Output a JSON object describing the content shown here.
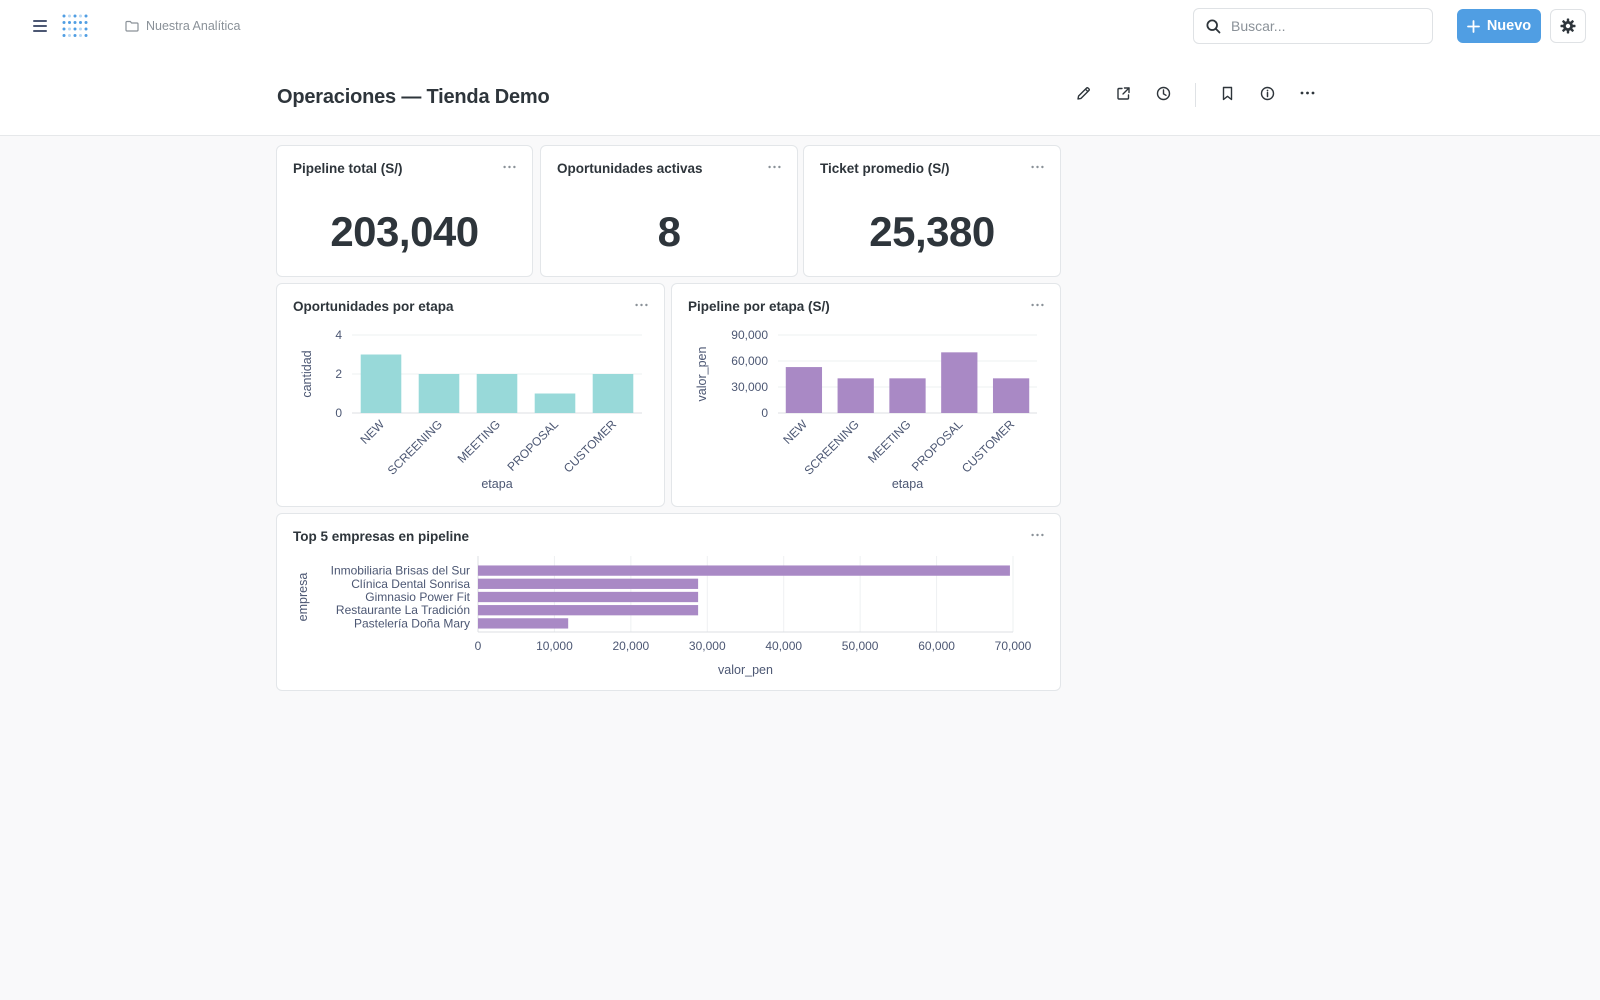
{
  "topbar": {
    "breadcrumb": "Nuestra Analítica",
    "search_placeholder": "Buscar...",
    "new_label": "Nuevo"
  },
  "dashboard": {
    "title": "Operaciones — Tienda Demo"
  },
  "colors": {
    "brand": "#509ee3",
    "teal": "#98d9d9",
    "purple": "#a989c5"
  },
  "cards": {
    "pipeline_total": {
      "title": "Pipeline total (S/)",
      "value": "203,040"
    },
    "oportunidades_activas": {
      "title": "Oportunidades activas",
      "value": "8"
    },
    "ticket_promedio": {
      "title": "Ticket promedio (S/)",
      "value": "25,380"
    },
    "oportunidades_etapa": {
      "title": "Oportunidades por etapa"
    },
    "pipeline_etapa": {
      "title": "Pipeline por etapa (S/)"
    },
    "top_empresas": {
      "title": "Top 5 empresas en pipeline"
    }
  },
  "chart_data": [
    {
      "type": "bar",
      "categories": [
        "NEW",
        "SCREENING",
        "MEETING",
        "PROPOSAL",
        "CUSTOMER"
      ],
      "values": [
        3,
        2,
        2,
        1,
        2
      ],
      "xlabel": "etapa",
      "ylabel": "cantidad",
      "ylim": [
        0,
        4
      ],
      "yticks": [
        "0",
        "2",
        "4"
      ],
      "ytick_values": [
        0,
        2,
        4
      ],
      "grid": true,
      "color": "#98d9d9"
    },
    {
      "type": "bar",
      "categories": [
        "NEW",
        "SCREENING",
        "MEETING",
        "PROPOSAL",
        "CUSTOMER"
      ],
      "values": [
        53000,
        40000,
        40000,
        70000,
        40000
      ],
      "xlabel": "etapa",
      "ylabel": "valor_pen",
      "ylim": [
        0,
        90000
      ],
      "yticks": [
        "0",
        "30,000",
        "60,000",
        "90,000"
      ],
      "ytick_values": [
        0,
        30000,
        60000,
        90000
      ],
      "grid": true,
      "color": "#a989c5"
    },
    {
      "type": "bar",
      "orientation": "horizontal",
      "categories": [
        "Inmobiliaria Brisas del Sur",
        "Clínica Dental Sonrisa",
        "Gimnasio Power Fit",
        "Restaurante La Tradición",
        "Pastelería Doña Mary"
      ],
      "values": [
        69600,
        28800,
        28800,
        28800,
        11800
      ],
      "xlabel": "valor_pen",
      "ylabel": "empresa",
      "xlim": [
        0,
        70000
      ],
      "xticks": [
        "0",
        "10,000",
        "20,000",
        "30,000",
        "40,000",
        "50,000",
        "60,000",
        "70,000"
      ],
      "xtick_values": [
        0,
        10000,
        20000,
        30000,
        40000,
        50000,
        60000,
        70000
      ],
      "grid": true,
      "color": "#a989c5"
    }
  ]
}
